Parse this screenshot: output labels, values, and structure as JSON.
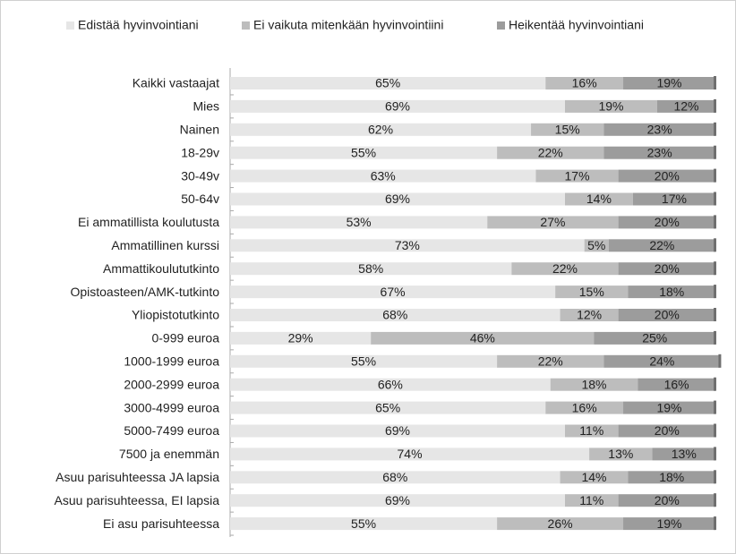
{
  "chart_data": {
    "type": "stacked_bar_horizontal",
    "categories": [
      "Kaikki vastaajat",
      "Mies",
      "Nainen",
      "18-29v",
      "30-49v",
      "50-64v",
      "Ei ammatillista koulutusta",
      "Ammatillinen kurssi",
      "Ammattikoulututkinto",
      "Opistoasteen/AMK-tutkinto",
      "Yliopistotutkinto",
      "0-999 euroa",
      "1000-1999 euroa",
      "2000-2999 euroa",
      "3000-4999 euroa",
      "5000-7499 euroa",
      "7500 ja enemmän",
      "Asuu parisuhteessa JA lapsia",
      "Asuu parisuhteessa, EI lapsia",
      "Ei asu parisuhteessa"
    ],
    "series": [
      {
        "name": "Edistää hyvinvointiani",
        "color": "#e6e6e6",
        "values": [
          65,
          69,
          62,
          55,
          63,
          69,
          53,
          73,
          58,
          67,
          68,
          29,
          55,
          66,
          65,
          69,
          74,
          68,
          69,
          55
        ],
        "value_labels": [
          "65%",
          "69%",
          "62%",
          "55%",
          "63%",
          "69%",
          "53%",
          "73%",
          "58%",
          "67%",
          "68%",
          "29%",
          "55%",
          "66%",
          "65%",
          "69%",
          "74%",
          "68%",
          "69%",
          "55%"
        ]
      },
      {
        "name": "Ei vaikuta mitenkään hyvinvointiini",
        "color": "#bdbdbd",
        "values": [
          16,
          19,
          15,
          22,
          17,
          14,
          27,
          5,
          22,
          15,
          12,
          46,
          22,
          18,
          16,
          11,
          13,
          14,
          11,
          26
        ],
        "value_labels": [
          "16%",
          "19%",
          "15%",
          "22%",
          "17%",
          "14%",
          "27%",
          "5%",
          "22%",
          "15%",
          "12%",
          "46%",
          "22%",
          "18%",
          "16%",
          "11%",
          "13%",
          "14%",
          "11%",
          "26%"
        ]
      },
      {
        "name": "Heikentää hyvinvointiani",
        "color": "#9c9c9c",
        "values": [
          19,
          12,
          23,
          23,
          20,
          17,
          20,
          22,
          20,
          18,
          20,
          25,
          24,
          16,
          19,
          20,
          13,
          18,
          20,
          19
        ],
        "value_labels": [
          "19%",
          "12%",
          "23%",
          "23%",
          "20%",
          "17%",
          "20%",
          "22%",
          "20%",
          "18%",
          "20%",
          "25%",
          "24%",
          "16%",
          "19%",
          "20%",
          "13%",
          "18%",
          "20%",
          "19%"
        ]
      }
    ],
    "legend": "top"
  }
}
